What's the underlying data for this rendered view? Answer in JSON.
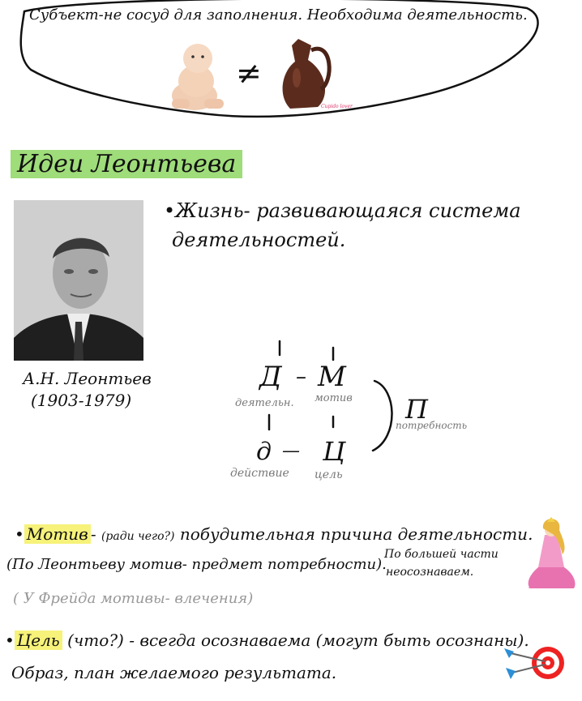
{
  "bubble": {
    "text": "Субъект-не сосуд для заполнения. Необходима деятельность.",
    "neq_symbol": "≠",
    "jug_caption": "Cupido lover"
  },
  "section_title": "Идеи Леонтьева",
  "portrait_caption": {
    "name": "А.Н. Леонтьев",
    "years": "(1903-1979)"
  },
  "life_statement": {
    "line1": "•Жизнь- развивающаяся система",
    "line2": "деятельностей."
  },
  "scheme": {
    "D": "Д",
    "D_label": "деятельн.",
    "M": "М",
    "M_label": "мотив",
    "d": "д",
    "d_label": "действие",
    "C": "Ц",
    "C_label": "цель",
    "dash1": "–",
    "dash2": "—",
    "P": "П",
    "P_label": "потребность"
  },
  "motive": {
    "word": "Мотив",
    "q": "(ради чего?)",
    "def": "побудительная причина деятельности.",
    "line2": "(По Леонтьеву мотив- предмет потребности).",
    "side1": "По большей части",
    "side2": "неосознаваем.",
    "line3": "( У Фрейда мотивы- влечения)"
  },
  "goal": {
    "word": "Цель",
    "q": "(что?)",
    "def": "- всегда осознаваема (могут быть осознаны).",
    "line2": "Образ, план желаемого результата."
  }
}
